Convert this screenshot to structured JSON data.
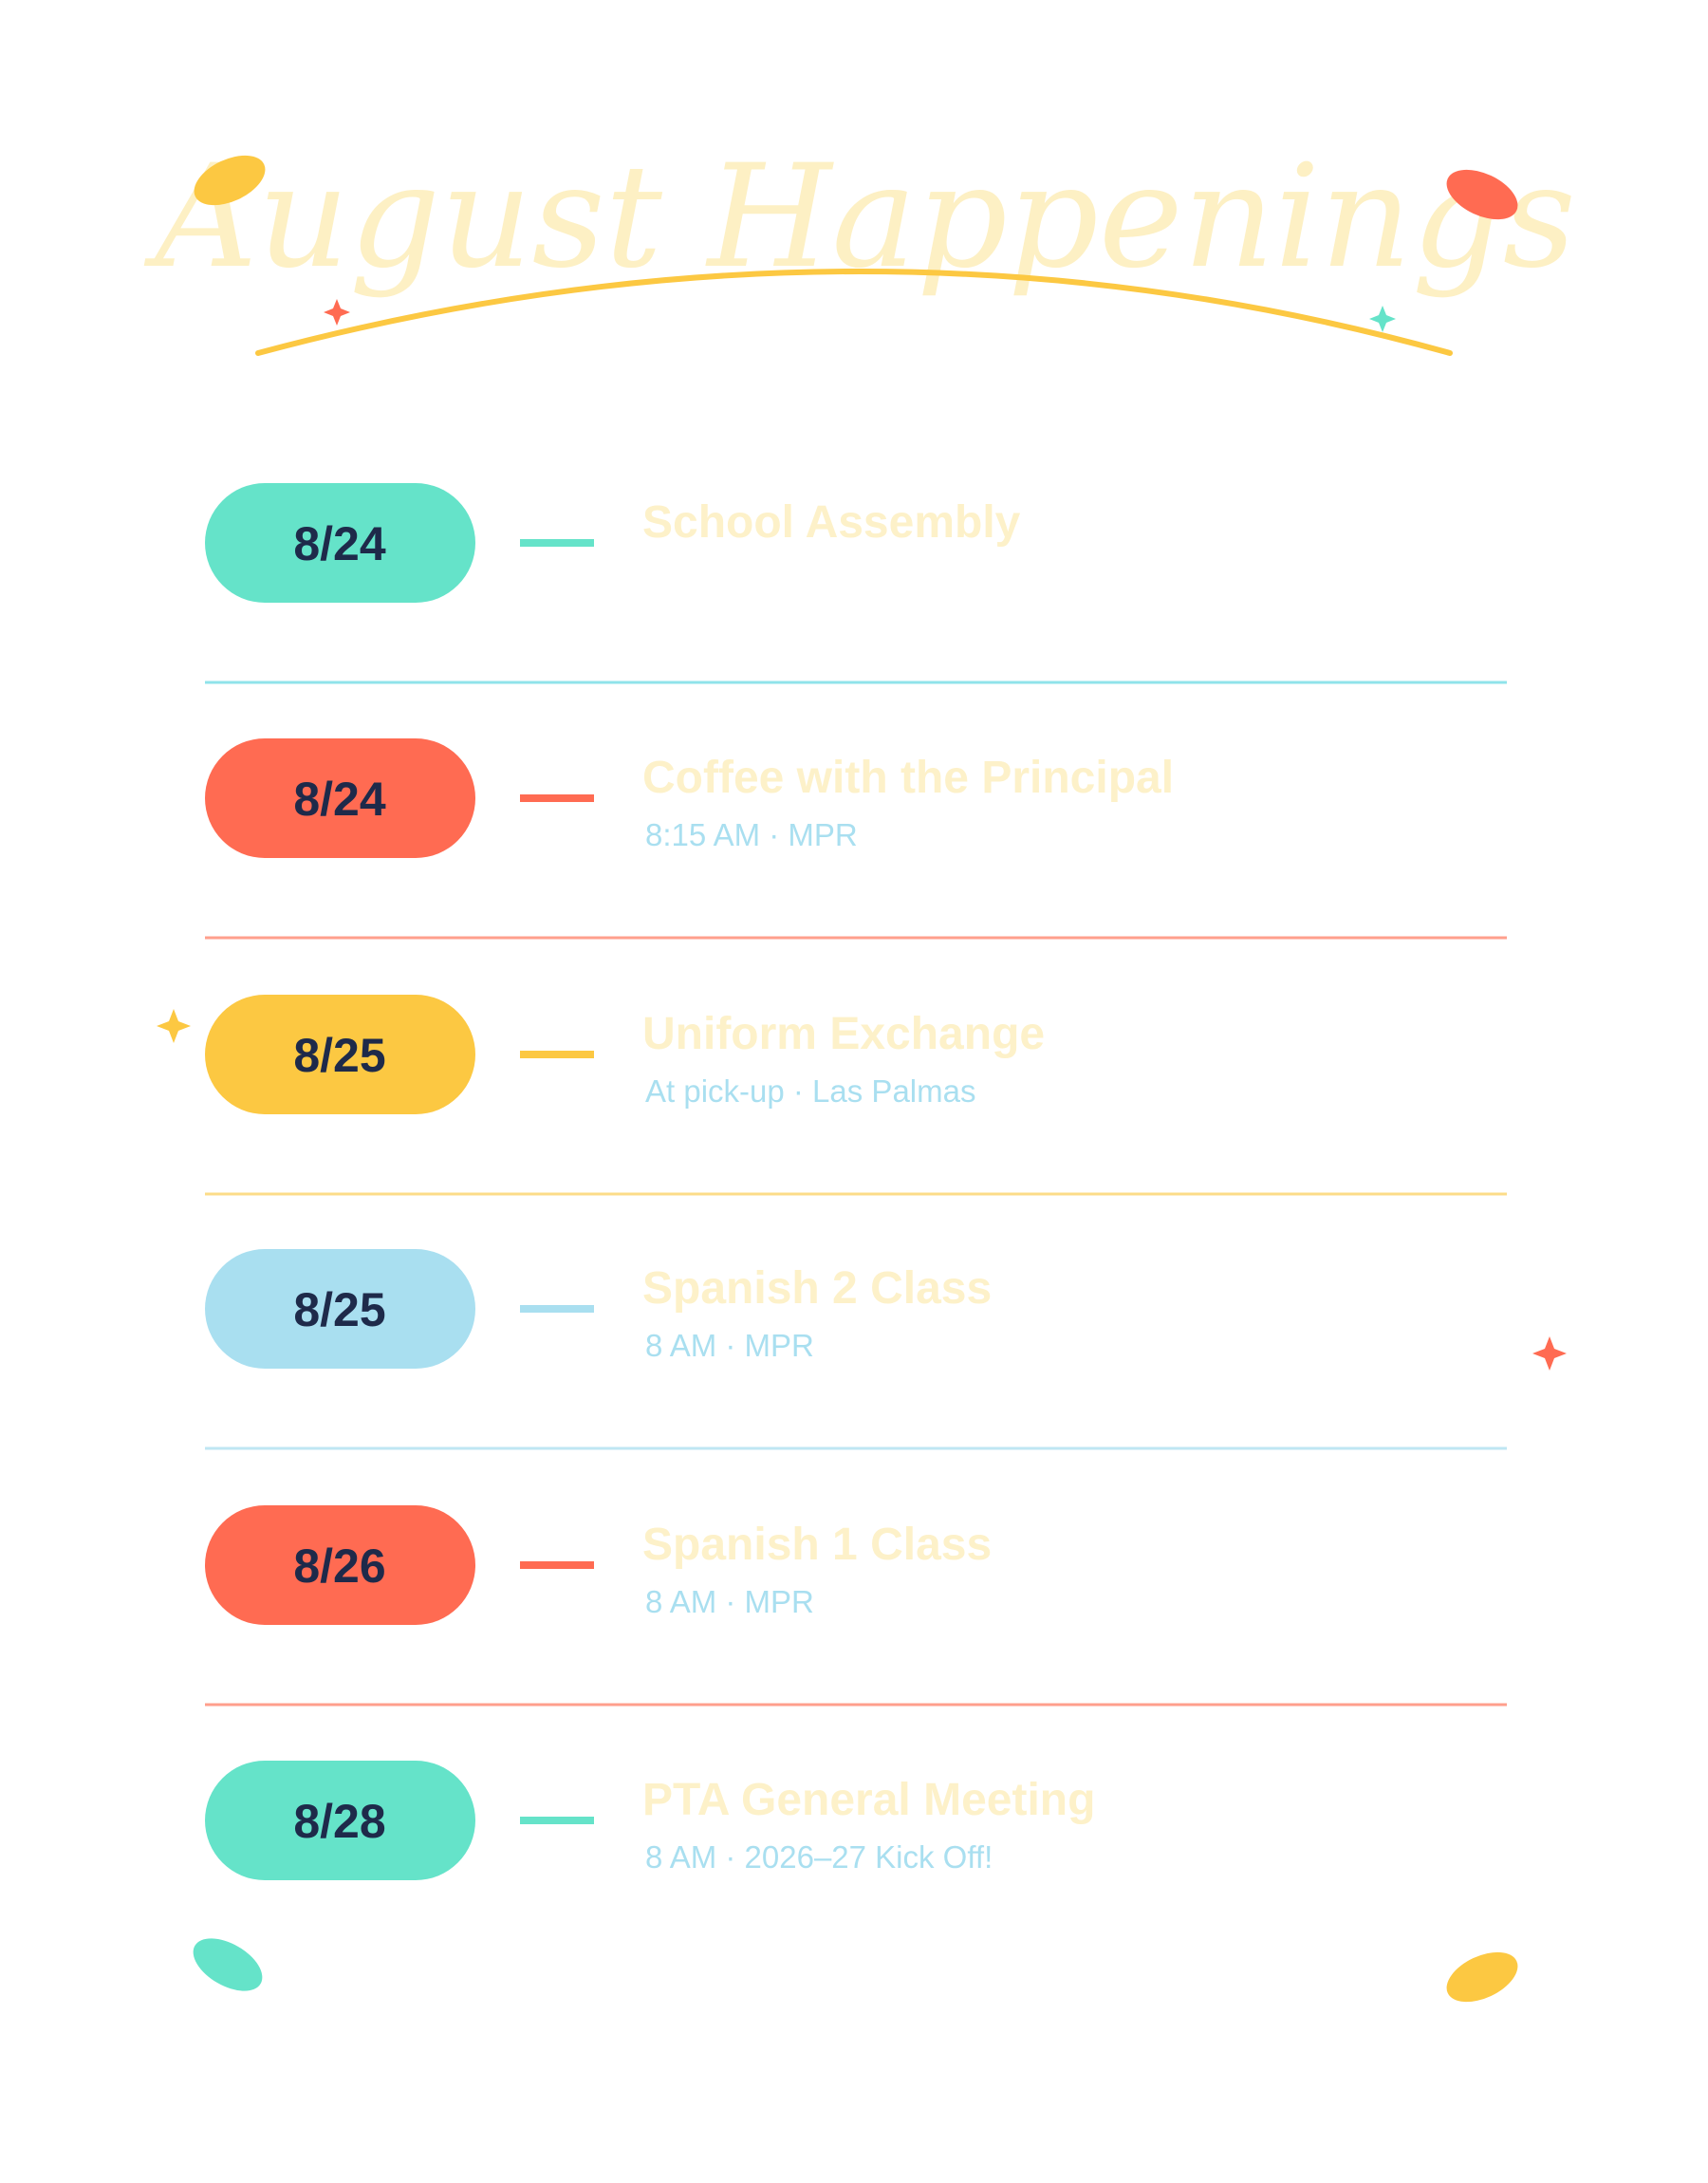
{
  "header": {
    "title": "August Happenings"
  },
  "events": [
    {
      "date": "8/24",
      "title": "School Assembly"
    },
    {
      "date": "8/24",
      "title": "Coffee with the Principal",
      "detail": "8:15 AM · MPR"
    },
    {
      "date": "8/25",
      "title": "Uniform Exchange",
      "detail": "At pick-up · Las Palmas"
    },
    {
      "date": "8/25",
      "title": "Spanish 2 Class",
      "detail": "8 AM · MPR"
    },
    {
      "date": "8/26",
      "title": "Spanish 1 Class",
      "detail": "8 AM · MPR"
    },
    {
      "date": "8/28",
      "title": "PTA General Meeting",
      "detail": "8 AM · 2026–27 Kick Off!"
    }
  ]
}
